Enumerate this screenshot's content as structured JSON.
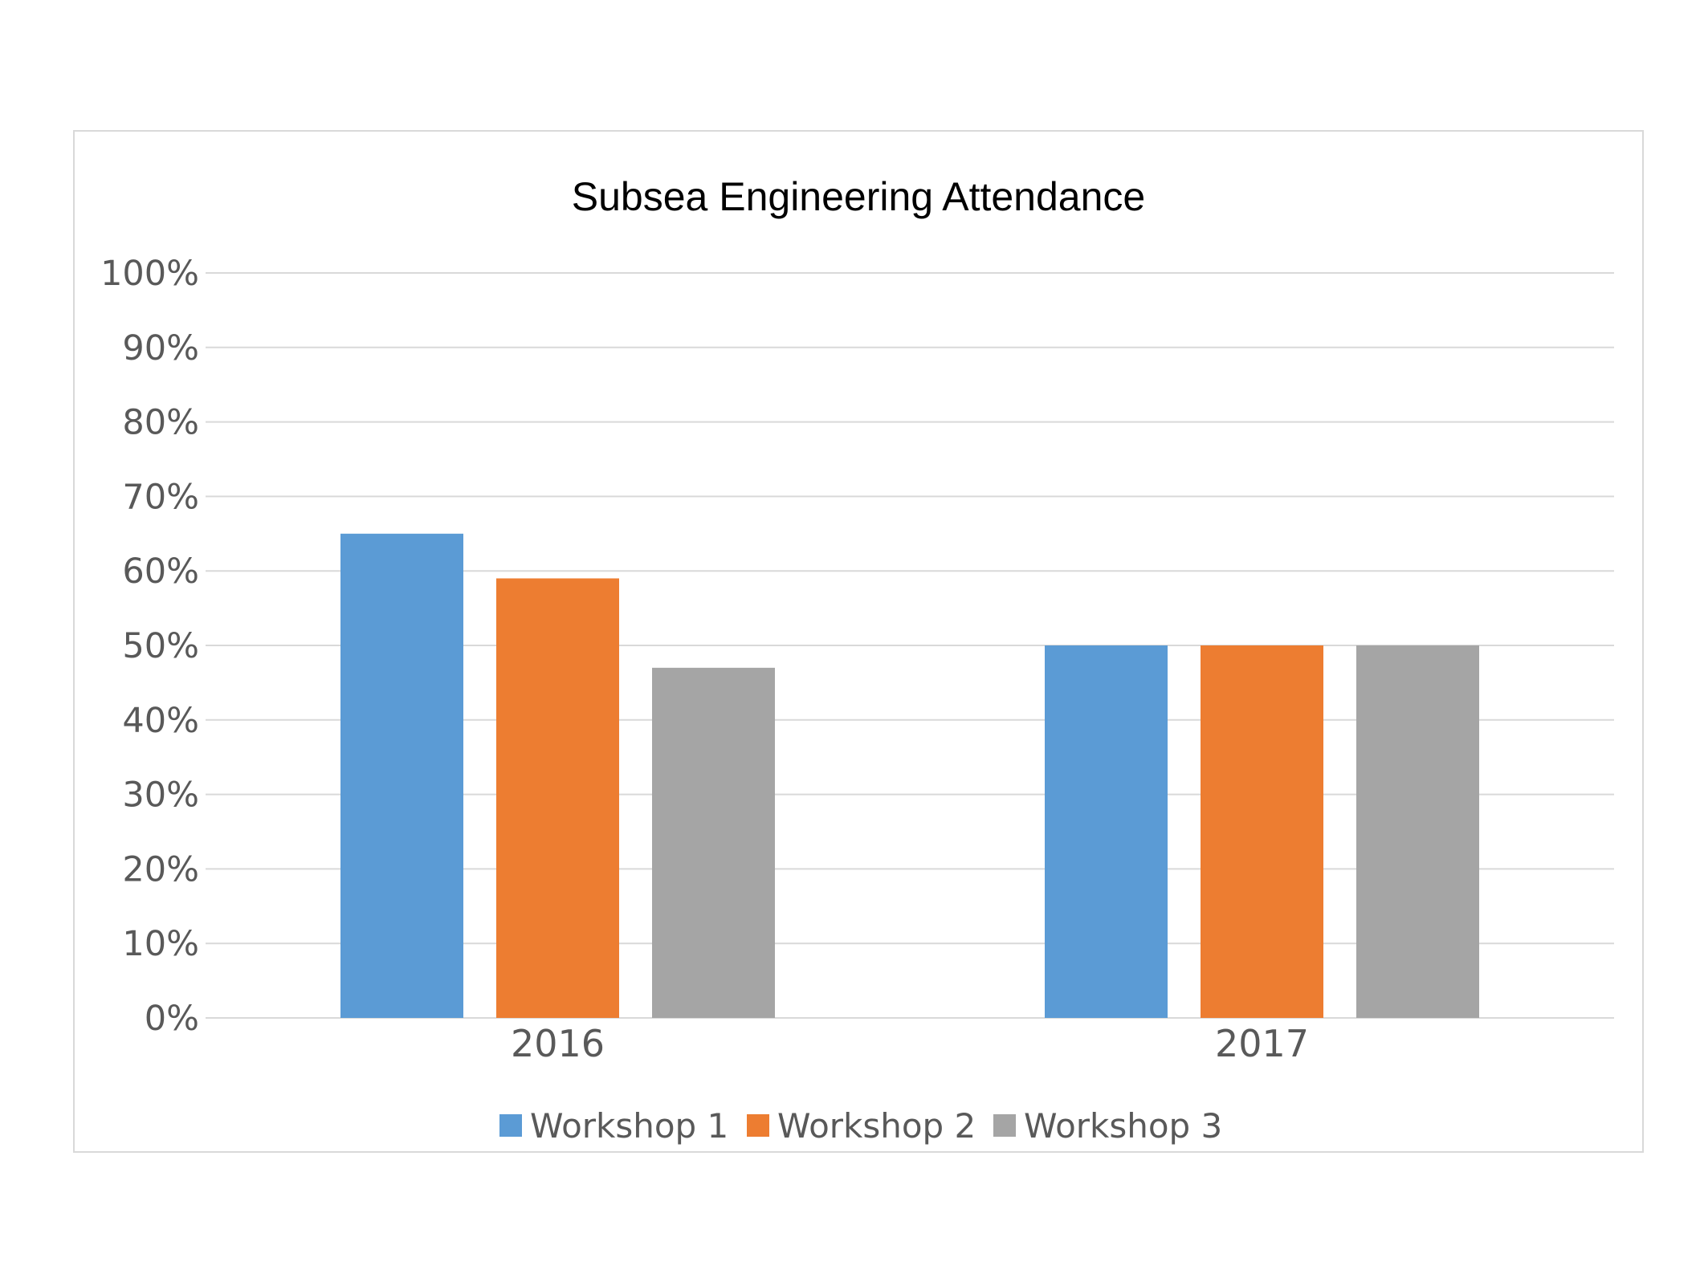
{
  "chart_data": {
    "type": "bar",
    "title": "Subsea Engineering Attendance",
    "categories": [
      "2016",
      "2017"
    ],
    "series": [
      {
        "name": "Workshop 1",
        "color": "#5b9bd5",
        "values": [
          0.65,
          0.5
        ]
      },
      {
        "name": "Workshop 2",
        "color": "#ed7d31",
        "values": [
          0.59,
          0.5
        ]
      },
      {
        "name": "Workshop 3",
        "color": "#a5a5a5",
        "values": [
          0.47,
          0.5
        ]
      }
    ],
    "ylim": [
      0,
      1
    ],
    "yticks": [
      0,
      0.1,
      0.2,
      0.3,
      0.4,
      0.5,
      0.6,
      0.7,
      0.8,
      0.9,
      1.0
    ],
    "ytick_labels": [
      "0%",
      "10%",
      "20%",
      "30%",
      "40%",
      "50%",
      "60%",
      "70%",
      "80%",
      "90%",
      "100%"
    ],
    "xlabel": "",
    "ylabel": "",
    "grid": true,
    "legend_position": "bottom",
    "gridline_color": "#d9d9d9"
  }
}
